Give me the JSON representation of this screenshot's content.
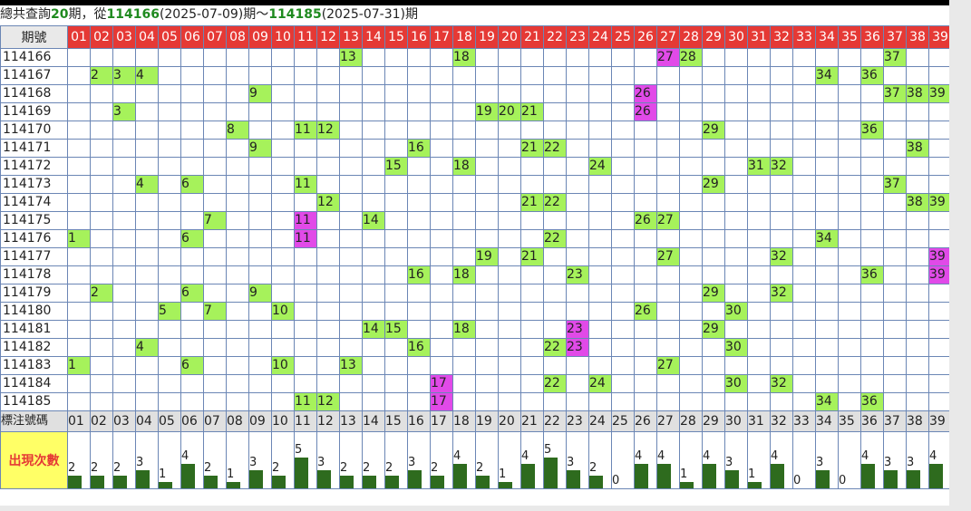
{
  "summary": {
    "p1": "總共查詢",
    "count": "20",
    "p2": "期，從",
    "from_period": "114166",
    "from_date": "(2025-07-09)",
    "p3": "期～",
    "to_period": "114185",
    "to_date": "(2025-07-31)",
    "p4": "期"
  },
  "header_label": "期號",
  "footer_label": "標注號碼",
  "count_label": "出現次數",
  "numbers": [
    "01",
    "02",
    "03",
    "04",
    "05",
    "06",
    "07",
    "08",
    "09",
    "10",
    "11",
    "12",
    "13",
    "14",
    "15",
    "16",
    "17",
    "18",
    "19",
    "20",
    "21",
    "22",
    "23",
    "24",
    "25",
    "26",
    "27",
    "28",
    "29",
    "30",
    "31",
    "32",
    "33",
    "34",
    "35",
    "36",
    "37",
    "38",
    "39"
  ],
  "colors": {
    "green": "#a6f25b",
    "magenta": "#e14ae8",
    "red_header": "#e53935",
    "bar": "#2e6b1e",
    "count_label_bg": "#ffff66"
  },
  "draws": [
    {
      "period": "114166",
      "numbers": [
        13,
        18,
        27,
        28,
        37
      ],
      "highlight": [
        27
      ]
    },
    {
      "period": "114167",
      "numbers": [
        2,
        3,
        4,
        34,
        36
      ],
      "highlight": []
    },
    {
      "period": "114168",
      "numbers": [
        9,
        26,
        37,
        38,
        39
      ],
      "highlight": [
        26
      ]
    },
    {
      "period": "114169",
      "numbers": [
        3,
        19,
        20,
        21,
        26
      ],
      "highlight": [
        26
      ]
    },
    {
      "period": "114170",
      "numbers": [
        8,
        11,
        12,
        29,
        36
      ],
      "highlight": []
    },
    {
      "period": "114171",
      "numbers": [
        9,
        16,
        21,
        22,
        38
      ],
      "highlight": []
    },
    {
      "period": "114172",
      "numbers": [
        15,
        18,
        24,
        31,
        32
      ],
      "highlight": []
    },
    {
      "period": "114173",
      "numbers": [
        4,
        6,
        11,
        29,
        37
      ],
      "highlight": []
    },
    {
      "period": "114174",
      "numbers": [
        12,
        21,
        22,
        38,
        39
      ],
      "highlight": []
    },
    {
      "period": "114175",
      "numbers": [
        7,
        11,
        14,
        26,
        27
      ],
      "highlight": [
        11
      ]
    },
    {
      "period": "114176",
      "numbers": [
        1,
        6,
        11,
        22,
        34
      ],
      "highlight": [
        11
      ]
    },
    {
      "period": "114177",
      "numbers": [
        19,
        21,
        27,
        32,
        39
      ],
      "highlight": [
        39
      ]
    },
    {
      "period": "114178",
      "numbers": [
        16,
        18,
        23,
        36,
        39
      ],
      "highlight": [
        39
      ]
    },
    {
      "period": "114179",
      "numbers": [
        2,
        6,
        9,
        29,
        32
      ],
      "highlight": []
    },
    {
      "period": "114180",
      "numbers": [
        5,
        7,
        10,
        26,
        30
      ],
      "highlight": []
    },
    {
      "period": "114181",
      "numbers": [
        14,
        15,
        18,
        23,
        29
      ],
      "highlight": [
        23
      ]
    },
    {
      "period": "114182",
      "numbers": [
        4,
        16,
        22,
        23,
        30
      ],
      "highlight": [
        23
      ]
    },
    {
      "period": "114183",
      "numbers": [
        1,
        6,
        10,
        13,
        27
      ],
      "highlight": []
    },
    {
      "period": "114184",
      "numbers": [
        17,
        22,
        24,
        30,
        32
      ],
      "highlight": [
        17
      ]
    },
    {
      "period": "114185",
      "numbers": [
        11,
        12,
        17,
        34,
        36
      ],
      "highlight": [
        17
      ]
    }
  ],
  "counts": [
    2,
    2,
    2,
    3,
    1,
    4,
    2,
    1,
    3,
    2,
    5,
    3,
    2,
    2,
    2,
    3,
    2,
    4,
    2,
    1,
    4,
    5,
    3,
    2,
    0,
    4,
    4,
    1,
    4,
    3,
    1,
    4,
    0,
    3,
    0,
    4,
    3,
    3,
    4
  ]
}
